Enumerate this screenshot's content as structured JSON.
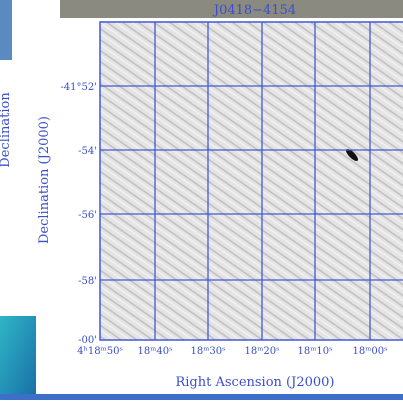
{
  "title": "J0418−4154",
  "x_axis": {
    "label": "Right Ascension (J2000)",
    "tick_labels": [
      "4ʰ18ᵐ50ˢ",
      "18ᵐ40ˢ",
      "18ᵐ30ˢ",
      "18ᵐ20ˢ",
      "18ᵐ10ˢ",
      "18ᵐ00ˢ"
    ]
  },
  "y_axis": {
    "label": "Declination (J2000)",
    "tick_labels": [
      "-41°52'",
      "-54'",
      "-56'",
      "-58'",
      "-00'"
    ]
  },
  "side_label": "Declination"
}
